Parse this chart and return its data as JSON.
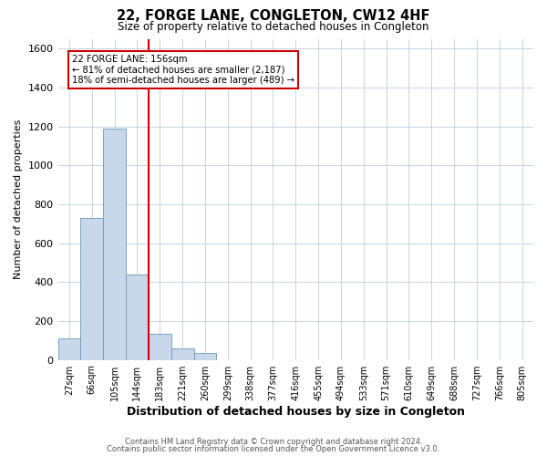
{
  "title": "22, FORGE LANE, CONGLETON, CW12 4HF",
  "subtitle": "Size of property relative to detached houses in Congleton",
  "xlabel": "Distribution of detached houses by size in Congleton",
  "ylabel": "Number of detached properties",
  "bar_labels": [
    "27sqm",
    "66sqm",
    "105sqm",
    "144sqm",
    "183sqm",
    "221sqm",
    "260sqm",
    "299sqm",
    "338sqm",
    "377sqm",
    "416sqm",
    "455sqm",
    "494sqm",
    "533sqm",
    "571sqm",
    "610sqm",
    "649sqm",
    "688sqm",
    "727sqm",
    "766sqm",
    "805sqm"
  ],
  "bar_values": [
    110,
    730,
    1190,
    440,
    135,
    60,
    35,
    0,
    0,
    0,
    0,
    0,
    0,
    0,
    0,
    0,
    0,
    0,
    0,
    0,
    0
  ],
  "bar_color": "#c8d8ea",
  "bar_edge_color": "#6699bb",
  "ylim": [
    0,
    1650
  ],
  "yticks": [
    0,
    200,
    400,
    600,
    800,
    1000,
    1200,
    1400,
    1600
  ],
  "property_line_color": "#cc0000",
  "annotation_title": "22 FORGE LANE: 156sqm",
  "annotation_line1": "← 81% of detached houses are smaller (2,187)",
  "annotation_line2": "18% of semi-detached houses are larger (489) →",
  "annotation_box_color": "#cc0000",
  "footer_line1": "Contains HM Land Registry data © Crown copyright and database right 2024.",
  "footer_line2": "Contains public sector information licensed under the Open Government Licence v3.0.",
  "background_color": "#ffffff",
  "grid_color": "#c8d4e4"
}
